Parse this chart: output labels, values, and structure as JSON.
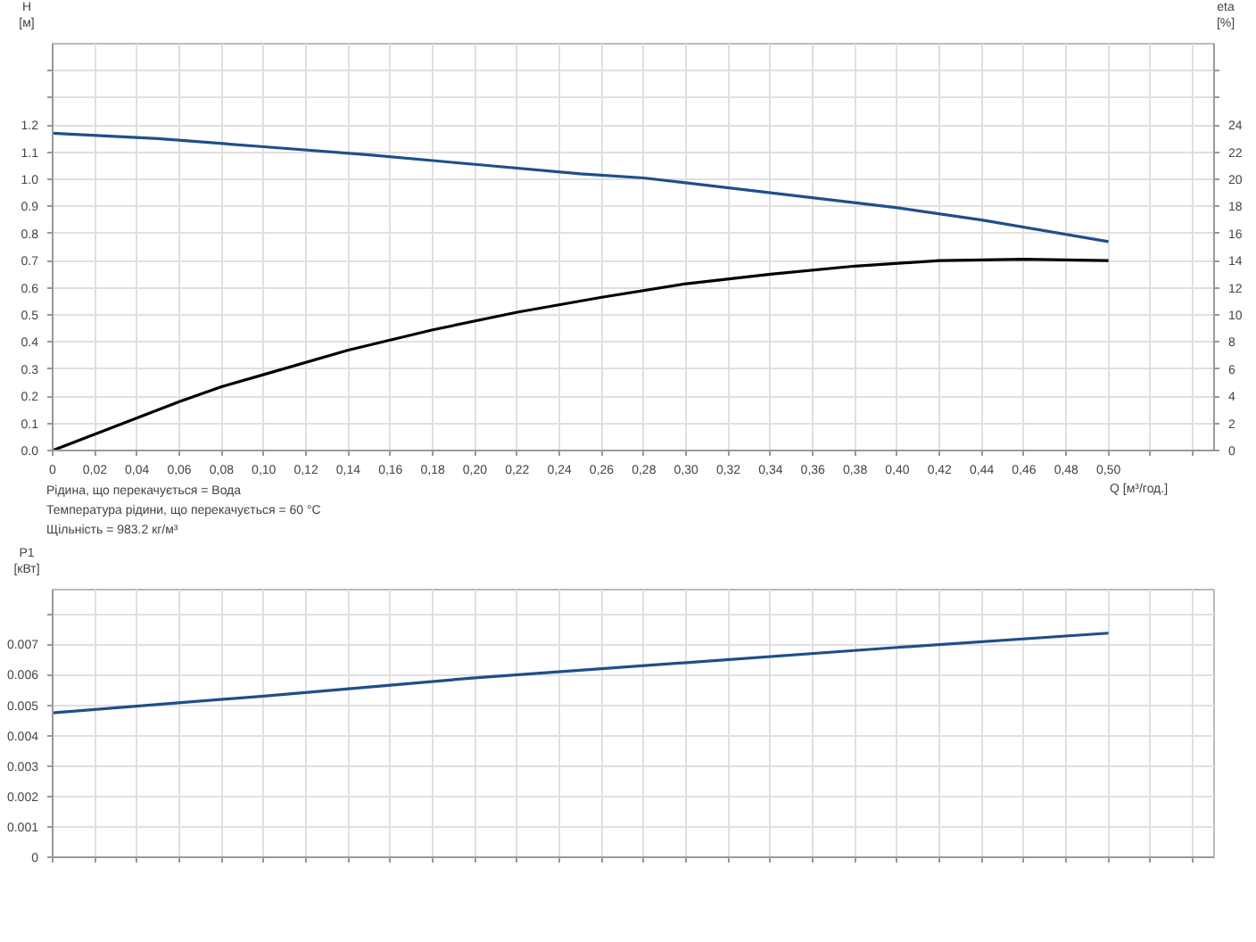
{
  "chart_data": [
    {
      "type": "line",
      "xlabel": "Q [м³/год.]",
      "ylabel": "H\n[м]",
      "y2label": "eta\n[%]",
      "annotations": [
        "Рідина, що перекачується = Вода",
        "Температура рідини, що перекачується = 60 °C",
        "Щільність = 983.2 кг/м³"
      ],
      "xlim": [
        0,
        0.55
      ],
      "xticks": [
        0,
        {
          "value": 0.02,
          "label": "0,02"
        },
        {
          "value": 0.04,
          "label": "0,04"
        },
        {
          "value": 0.06,
          "label": "0,06"
        },
        {
          "value": 0.08,
          "label": "0,08"
        },
        {
          "value": 0.1,
          "label": "0,10"
        },
        {
          "value": 0.12,
          "label": "0,12"
        },
        {
          "value": 0.14,
          "label": "0,14"
        },
        {
          "value": 0.16,
          "label": "0,16"
        },
        {
          "value": 0.18,
          "label": "0,18"
        },
        {
          "value": 0.2,
          "label": "0,20"
        },
        {
          "value": 0.22,
          "label": "0,22"
        },
        {
          "value": 0.24,
          "label": "0,24"
        },
        {
          "value": 0.26,
          "label": "0,26"
        },
        {
          "value": 0.28,
          "label": "0,28"
        },
        {
          "value": 0.3,
          "label": "0,30"
        },
        {
          "value": 0.32,
          "label": "0,32"
        },
        {
          "value": 0.34,
          "label": "0,34"
        },
        {
          "value": 0.36,
          "label": "0,36"
        },
        {
          "value": 0.38,
          "label": "0,38"
        },
        {
          "value": 0.4,
          "label": "0,40"
        },
        {
          "value": 0.42,
          "label": "0,42"
        },
        {
          "value": 0.44,
          "label": "0,44"
        },
        {
          "value": 0.46,
          "label": "0,46"
        },
        {
          "value": 0.48,
          "label": "0,48"
        },
        {
          "value": 0.5,
          "label": "0,50"
        },
        {
          "value": 0.52,
          "label": null
        },
        {
          "value": 0.54,
          "label": null
        }
      ],
      "ylim": [
        0,
        1.5
      ],
      "yticks": [
        {
          "value": 0,
          "label": "0.0"
        },
        0.1,
        0.2,
        0.3,
        0.4,
        0.5,
        0.6,
        0.7,
        0.8,
        0.9,
        {
          "value": 1.0,
          "label": "1.0"
        },
        1.1,
        1.2,
        {
          "value": 1.3,
          "label": null
        },
        {
          "value": 1.4,
          "label": null
        }
      ],
      "y2lim": [
        0,
        30
      ],
      "y2ticks": [
        0,
        2,
        4,
        6,
        8,
        10,
        12,
        14,
        16,
        18,
        20,
        22,
        24,
        {
          "value": 26,
          "label": null
        },
        {
          "value": 28,
          "label": null
        }
      ],
      "grid": true,
      "series": [
        {
          "color": "#1f4e8c",
          "x": [
            0,
            0.05,
            0.1,
            0.15,
            0.2,
            0.25,
            0.28,
            0.34,
            0.4,
            0.44,
            0.5
          ],
          "values": [
            1.17,
            1.15,
            1.12,
            1.09,
            1.055,
            1.02,
            1.005,
            0.95,
            0.895,
            0.85,
            0.77
          ]
        },
        {
          "color": "#000000",
          "axis": "y2",
          "x": [
            0,
            0.02,
            0.04,
            0.06,
            0.08,
            0.1,
            0.14,
            0.18,
            0.22,
            0.26,
            0.3,
            0.34,
            0.38,
            0.42,
            0.46,
            0.5
          ],
          "values": [
            0,
            1.2,
            2.4,
            3.6,
            4.7,
            5.6,
            7.4,
            8.9,
            10.2,
            11.3,
            12.3,
            13.0,
            13.6,
            14.0,
            14.1,
            14.0
          ]
        }
      ]
    },
    {
      "type": "line",
      "ylabel": "P1\n[кВт]",
      "tick_labels": "y",
      "xlim": [
        0,
        0.55
      ],
      "xticks": [
        0,
        0.02,
        0.04,
        0.06,
        0.08,
        0.1,
        0.12,
        0.14,
        0.16,
        0.18,
        0.2,
        0.22,
        0.24,
        0.26,
        0.28,
        0.3,
        0.32,
        0.34,
        0.36,
        0.38,
        0.4,
        0.42,
        0.44,
        0.46,
        0.48,
        0.5,
        0.52,
        0.54
      ],
      "ylim": [
        0,
        0.0088
      ],
      "yticks": [
        0,
        0.001,
        0.002,
        0.003,
        0.004,
        0.005,
        0.006,
        0.007,
        {
          "value": 0.008,
          "label": null
        }
      ],
      "grid": true,
      "series": [
        {
          "color": "#1f4e8c",
          "x": [
            0,
            0.1,
            0.2,
            0.3,
            0.4,
            0.5
          ],
          "values": [
            0.00475,
            0.0053,
            0.0059,
            0.0064,
            0.0069,
            0.00737
          ]
        }
      ]
    }
  ]
}
